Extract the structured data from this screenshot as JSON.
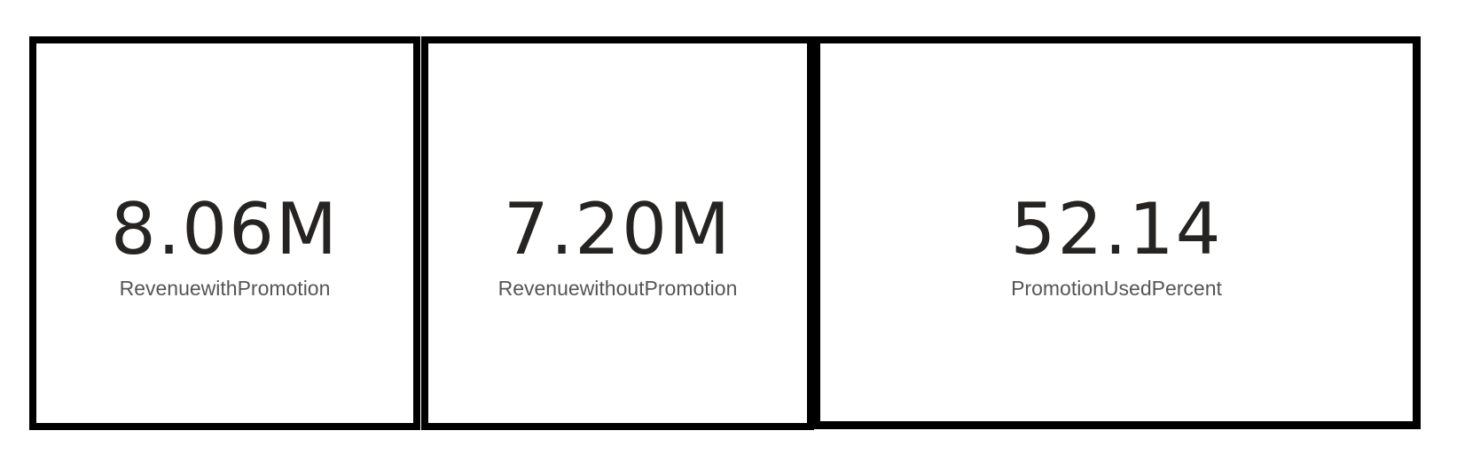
{
  "cards": [
    {
      "value": "8.06M",
      "label": "RevenuewithPromotion"
    },
    {
      "value": "7.20M",
      "label": "RevenuewithoutPromotion"
    },
    {
      "value": "52.14",
      "label": "PromotionUsedPercent"
    }
  ],
  "colors": {
    "border": "#000000",
    "value_text": "#252423",
    "label_text": "#555555",
    "background": "#ffffff"
  }
}
